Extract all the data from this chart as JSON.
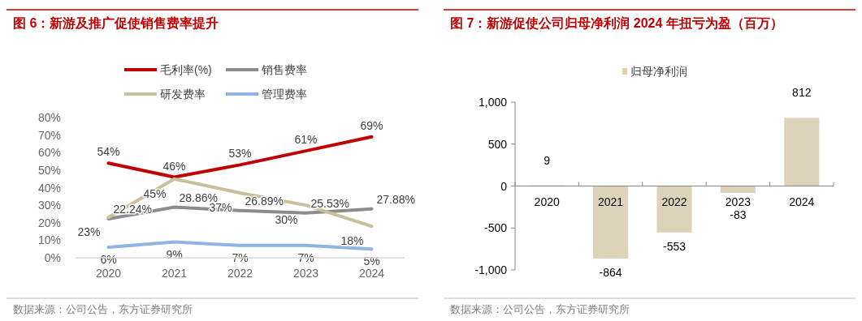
{
  "chart_data": [
    {
      "type": "line",
      "title": "图 6：新游及推广促使销售费率提升",
      "categories": [
        "2020",
        "2021",
        "2022",
        "2023",
        "2024"
      ],
      "ylim": [
        0,
        80
      ],
      "yticks": [
        {
          "value": 0,
          "label": "0%"
        },
        {
          "value": 10,
          "label": "10%"
        },
        {
          "value": 20,
          "label": "20%"
        },
        {
          "value": 30,
          "label": "30%"
        },
        {
          "value": 40,
          "label": "40%"
        },
        {
          "value": 50,
          "label": "50%"
        },
        {
          "value": 60,
          "label": "60%"
        },
        {
          "value": 70,
          "label": "70%"
        },
        {
          "value": 80,
          "label": "80%"
        }
      ],
      "legend": "top",
      "grid": false,
      "marker": "none",
      "line_style": "solid",
      "series": [
        {
          "name": "毛利率(%)",
          "color": "#c00000",
          "values": [
            54,
            46,
            53,
            61,
            69
          ],
          "value_labels": [
            "54%",
            "46%",
            "53%",
            "61%",
            "69%"
          ]
        },
        {
          "name": "销售费率",
          "color": "#8c8c8c",
          "values": [
            22.24,
            28.86,
            26.89,
            25.53,
            27.88
          ],
          "value_labels": [
            "22.24%",
            "28.86%",
            "26.89%",
            "25.53%",
            "27.88%"
          ]
        },
        {
          "name": "研发费率",
          "color": "#c9bf9b",
          "values": [
            23,
            45,
            37,
            30,
            18
          ],
          "value_labels": [
            "23%",
            "45%",
            "37%",
            "30%",
            "18%"
          ]
        },
        {
          "name": "管理费率",
          "color": "#8eb4e3",
          "values": [
            6,
            9,
            7,
            7,
            5
          ],
          "value_labels": [
            "6%",
            "9%",
            "7%",
            "7%",
            "5%"
          ]
        }
      ],
      "annotations": [
        "数据来源：公司公告，东方证券研究所"
      ]
    },
    {
      "type": "bar",
      "title": "图 7：新游促使公司归母净利润 2024 年扭亏为盈（百万）",
      "categories": [
        "2020",
        "2021",
        "2022",
        "2023",
        "2024"
      ],
      "ylim": [
        -1000,
        1000
      ],
      "yticks": [
        {
          "value": -1000,
          "label": "-1,000"
        },
        {
          "value": -500,
          "label": "-500"
        },
        0,
        500,
        {
          "value": 1000,
          "label": "1,000"
        }
      ],
      "legend": "top",
      "grid": false,
      "data_labels": true,
      "series": [
        {
          "name": "归母净利润",
          "color": "#ddd3bb",
          "values": [
            9,
            -864,
            -553,
            -83,
            812
          ]
        }
      ],
      "annotations": [
        "数据来源：公司公告，东方证券研究所"
      ]
    }
  ]
}
